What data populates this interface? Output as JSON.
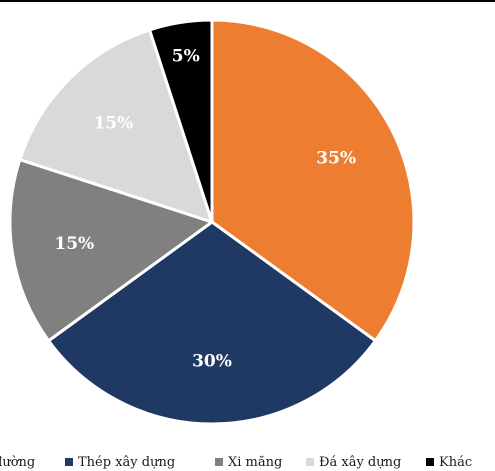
{
  "chart_data": {
    "type": "pie",
    "title": "",
    "categories": [
      "Đường",
      "Thép xây dựng",
      "Xi măng",
      "Đá xây dựng",
      "Khác"
    ],
    "values": [
      35,
      30,
      15,
      15,
      5
    ],
    "labels": [
      "35%",
      "30%",
      "15%",
      "15%",
      "5%"
    ],
    "colors": [
      "#ED7D31",
      "#203864",
      "#808080",
      "#D9D9D9",
      "#000000"
    ],
    "label_colors": [
      "#ffffff",
      "#ffffff",
      "#ffffff",
      "#ffffff",
      "#ffffff"
    ],
    "start_angle": 0,
    "direction": "clockwise",
    "legend": {
      "position": "bottom",
      "items": [
        "đường",
        "Thép xây dựng",
        "Xi măng",
        "Đá xây dựng",
        "Khác"
      ]
    }
  }
}
